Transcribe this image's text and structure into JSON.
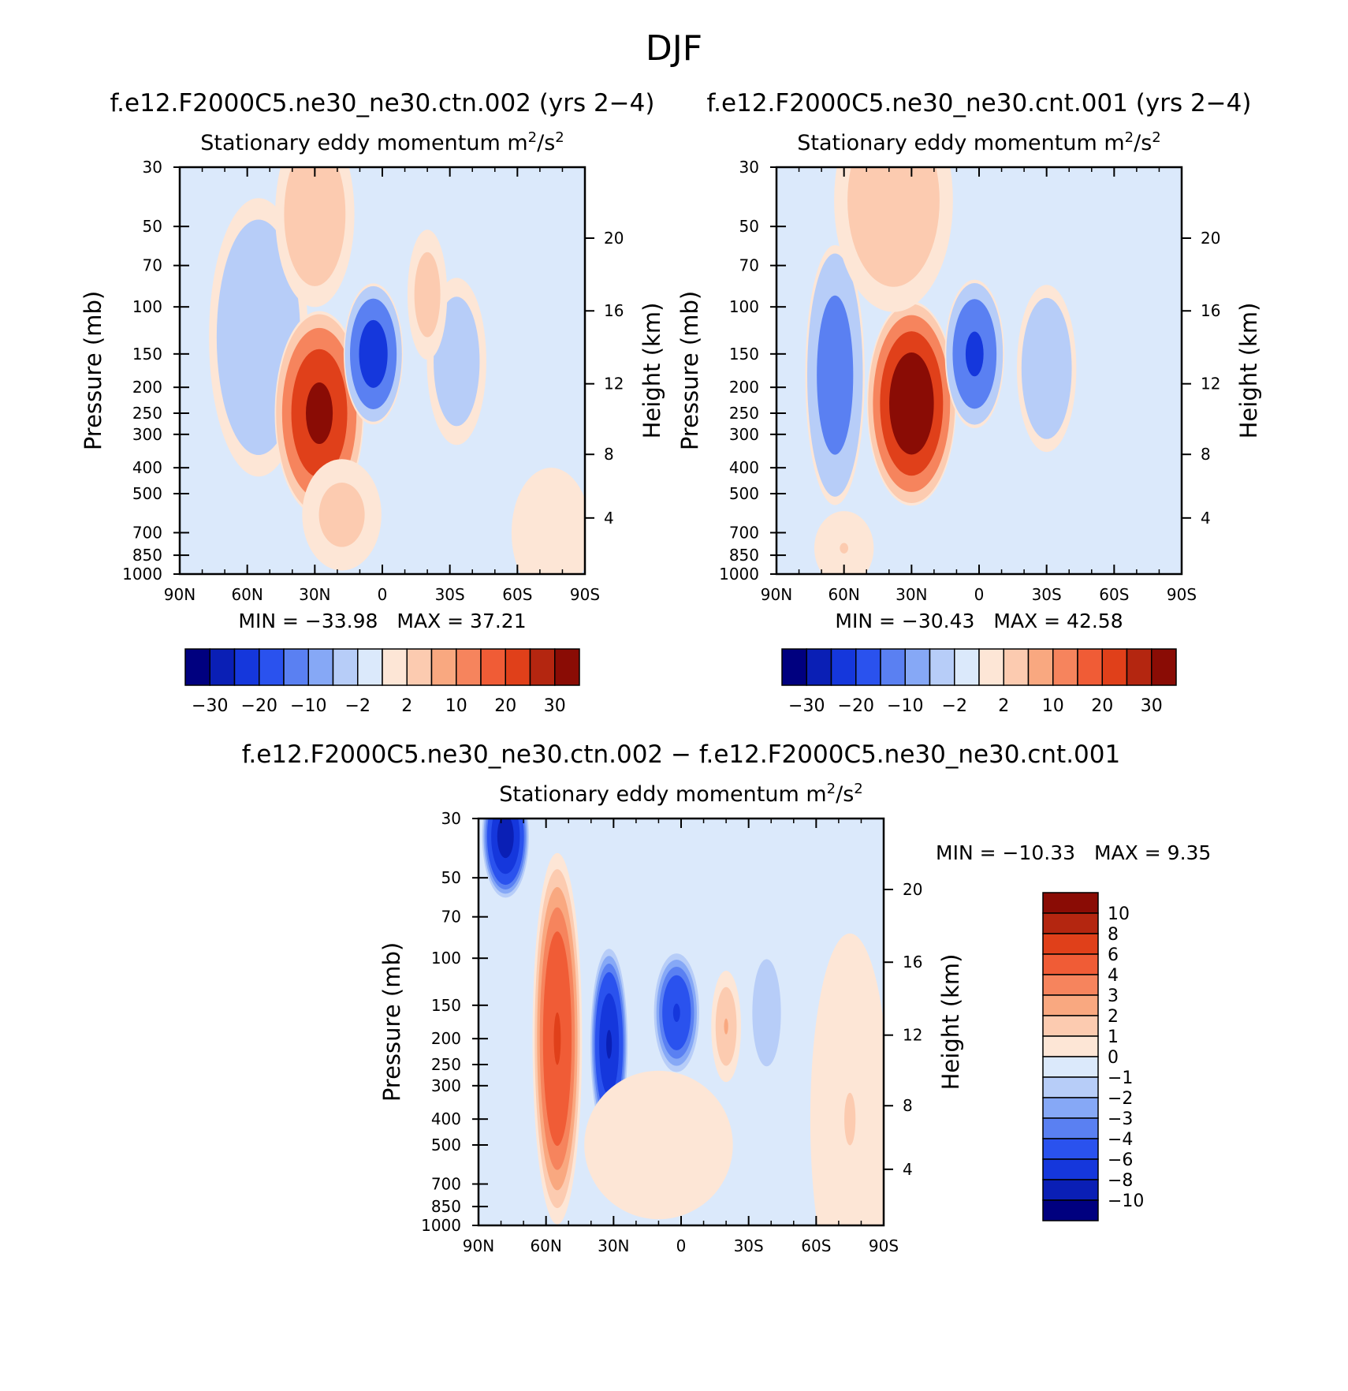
{
  "figure_title": "DJF",
  "colors": {
    "panel_background": "#dbe9fb",
    "axis": "#000000"
  },
  "chart_data": [
    {
      "type": "contour",
      "id": "ctn",
      "case_title": "f.e12.F2000C5.ne30_ne30.ctn.002 (yrs 2−4)",
      "variable": "Stationary eddy momentum",
      "units": "m",
      "units_exp": "2",
      "units_den": "/s",
      "units_den_exp": "2",
      "ylabel": "Pressure (mb)",
      "y2label": "Height (km)",
      "xticks": [
        "90N",
        "60N",
        "30N",
        "0",
        "30S",
        "60S",
        "90S"
      ],
      "yticks": [
        "30",
        "50",
        "70",
        "100",
        "150",
        "200",
        "250",
        "300",
        "400",
        "500",
        "700",
        "850",
        "1000"
      ],
      "y2ticks": [
        "20",
        "16",
        "12",
        "8",
        "4"
      ],
      "x_range": [
        -90,
        90
      ],
      "y_range": [
        1000,
        30
      ],
      "stats": {
        "min_label": "MIN =",
        "min": "−33.98",
        "max_label": "MAX =",
        "max": "37.21"
      },
      "levels": [
        "−30",
        "−20",
        "−10",
        "−2",
        "2",
        "10",
        "20",
        "30"
      ],
      "palette": [
        "#00007f",
        "#0a1fb5",
        "#1537dc",
        "#2a52ee",
        "#5a80f2",
        "#86a8f6",
        "#b7cdf8",
        "#dbe9fb",
        "#fde6d6",
        "#fccbb0",
        "#f9a880",
        "#f6845d",
        "#f05c36",
        "#e0401a",
        "#b42610",
        "#8a0c05"
      ],
      "blobs": [
        {
          "lat": 55,
          "p": 130,
          "value": -7,
          "sx": 10,
          "sy": 0.75
        },
        {
          "lat": 28,
          "p": 250,
          "value": 33,
          "sx": 9,
          "sy": 0.55
        },
        {
          "lat": 4,
          "p": 150,
          "value": -26,
          "sx": 6,
          "sy": 0.38
        },
        {
          "lat": -33,
          "p": 160,
          "value": -5,
          "sx": 6,
          "sy": 0.45
        },
        {
          "lat": -20,
          "p": 90,
          "value": 3.5,
          "sx": 4,
          "sy": 0.35
        },
        {
          "lat": 30,
          "p": 45,
          "value": 5,
          "sx": 8,
          "sy": 0.5
        },
        {
          "lat": 18,
          "p": 600,
          "value": 3,
          "sx": 8,
          "sy": 0.3
        },
        {
          "lat": -75,
          "p": 700,
          "value": 1.5,
          "sx": 8,
          "sy": 0.35
        }
      ]
    },
    {
      "type": "contour",
      "id": "cnt",
      "case_title": "f.e12.F2000C5.ne30_ne30.cnt.001 (yrs 2−4)",
      "variable": "Stationary eddy momentum",
      "units": "m",
      "units_exp": "2",
      "units_den": "/s",
      "units_den_exp": "2",
      "ylabel": "Pressure (mb)",
      "y2label": "Height (km)",
      "xticks": [
        "90N",
        "60N",
        "30N",
        "0",
        "30S",
        "60S",
        "90S"
      ],
      "yticks": [
        "30",
        "50",
        "70",
        "100",
        "150",
        "200",
        "250",
        "300",
        "400",
        "500",
        "700",
        "850",
        "1000"
      ],
      "y2ticks": [
        "20",
        "16",
        "12",
        "8",
        "4"
      ],
      "x_range": [
        -90,
        90
      ],
      "y_range": [
        1000,
        30
      ],
      "stats": {
        "min_label": "MIN =",
        "min": "−30.43",
        "max_label": "MAX =",
        "max": "42.58"
      },
      "levels": [
        "−30",
        "−20",
        "−10",
        "−2",
        "2",
        "10",
        "20",
        "30"
      ],
      "palette": [
        "#00007f",
        "#0a1fb5",
        "#1537dc",
        "#2a52ee",
        "#5a80f2",
        "#86a8f6",
        "#b7cdf8",
        "#dbe9fb",
        "#fde6d6",
        "#fccbb0",
        "#f9a880",
        "#f6845d",
        "#f05c36",
        "#e0401a",
        "#b42610",
        "#8a0c05"
      ],
      "blobs": [
        {
          "lat": 64,
          "p": 180,
          "value": -16,
          "sx": 6,
          "sy": 0.7
        },
        {
          "lat": 30,
          "p": 230,
          "value": 40,
          "sx": 9,
          "sy": 0.55
        },
        {
          "lat": 2,
          "p": 150,
          "value": -22,
          "sx": 6,
          "sy": 0.4
        },
        {
          "lat": -30,
          "p": 170,
          "value": -7,
          "sx": 6,
          "sy": 0.45
        },
        {
          "lat": 38,
          "p": 40,
          "value": 5,
          "sx": 12,
          "sy": 0.6
        },
        {
          "lat": 60,
          "p": 800,
          "value": 2,
          "sx": 6,
          "sy": 0.2
        }
      ]
    },
    {
      "type": "contour",
      "id": "diff",
      "case_title": "f.e12.F2000C5.ne30_ne30.ctn.002 − f.e12.F2000C5.ne30_ne30.cnt.001",
      "variable": "Stationary eddy momentum",
      "units": "m",
      "units_exp": "2",
      "units_den": "/s",
      "units_den_exp": "2",
      "ylabel": "Pressure (mb)",
      "y2label": "Height (km)",
      "xticks": [
        "90N",
        "60N",
        "30N",
        "0",
        "30S",
        "60S",
        "90S"
      ],
      "yticks": [
        "30",
        "50",
        "70",
        "100",
        "150",
        "200",
        "250",
        "300",
        "400",
        "500",
        "700",
        "850",
        "1000"
      ],
      "y2ticks": [
        "20",
        "16",
        "12",
        "8",
        "4"
      ],
      "x_range": [
        -90,
        90
      ],
      "y_range": [
        1000,
        30
      ],
      "stats": {
        "min_label": "MIN =",
        "min": "−10.33",
        "max_label": "MAX =",
        "max": "9.35"
      },
      "levels": [
        "10",
        "8",
        "6",
        "4",
        "3",
        "2",
        "1",
        "0",
        "−1",
        "−2",
        "−3",
        "−4",
        "−6",
        "−8",
        "−10"
      ],
      "palette": [
        "#8a0c05",
        "#b42610",
        "#e0401a",
        "#f05c36",
        "#f6845d",
        "#f9a880",
        "#fccbb0",
        "#fde6d6",
        "#dbe9fb",
        "#b7cdf8",
        "#86a8f6",
        "#5a80f2",
        "#2a52ee",
        "#1537dc",
        "#0a1fb5",
        "#00007f"
      ],
      "blobs": [
        {
          "lat": 78,
          "p": 35,
          "value": -9,
          "sx": 5,
          "sy": 0.35
        },
        {
          "lat": 55,
          "p": 200,
          "value": 6,
          "sx": 5,
          "sy": 1.0
        },
        {
          "lat": 32,
          "p": 210,
          "value": -8,
          "sx": 4,
          "sy": 0.55
        },
        {
          "lat": 2,
          "p": 160,
          "value": -6,
          "sx": 5,
          "sy": 0.35
        },
        {
          "lat": -20,
          "p": 180,
          "value": 2,
          "sx": 3,
          "sy": 0.3
        },
        {
          "lat": -38,
          "p": 160,
          "value": -1.5,
          "sx": 5,
          "sy": 0.5
        },
        {
          "lat": -75,
          "p": 400,
          "value": 1,
          "sx": 8,
          "sy": 1.0
        },
        {
          "lat": 10,
          "p": 500,
          "value": 0.8,
          "sx": 15,
          "sy": 0.4
        }
      ]
    }
  ]
}
